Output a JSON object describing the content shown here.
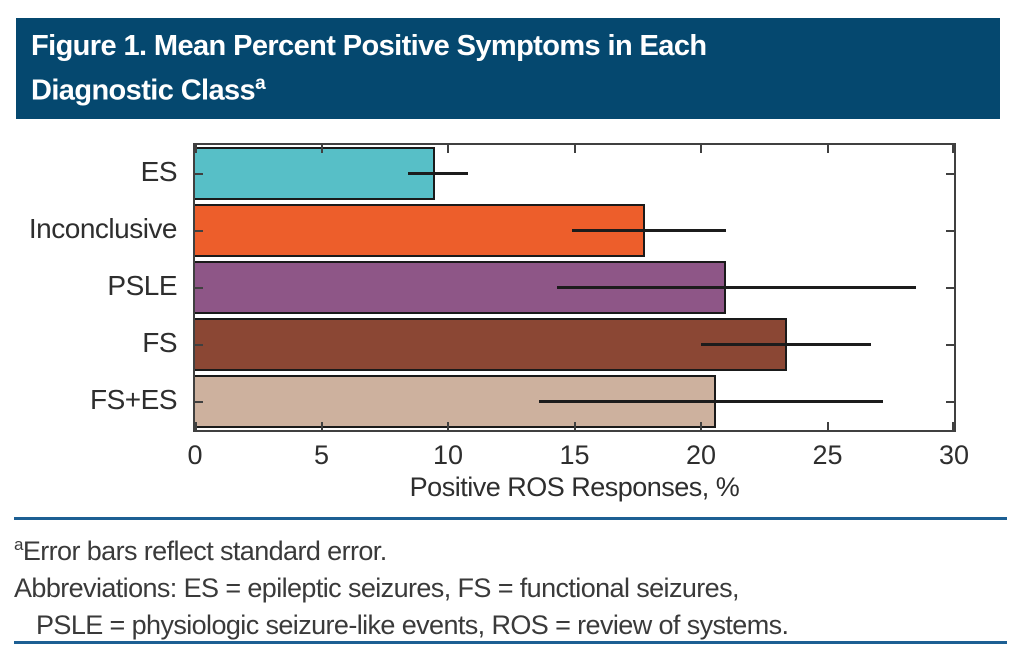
{
  "header": {
    "title_line1": "Figure 1. Mean Percent Positive Symptoms in Each",
    "title_line2": "Diagnostic Class",
    "title_superscript": "a",
    "bg_color": "#05486f",
    "text_color": "#ffffff"
  },
  "chart_data": {
    "type": "bar",
    "orientation": "horizontal",
    "categories": [
      "ES",
      "Inconclusive",
      "PSLE",
      "FS",
      "FS+ES"
    ],
    "values": [
      9.5,
      17.8,
      21.0,
      23.4,
      20.6
    ],
    "error_low": [
      8.4,
      14.9,
      14.3,
      20.0,
      13.6
    ],
    "error_high": [
      10.8,
      21.0,
      28.5,
      26.7,
      27.2
    ],
    "bar_colors": [
      "#57bfc7",
      "#ed5e2b",
      "#8e5687",
      "#8b4734",
      "#cdb19e"
    ],
    "bar_edge_color": "#1a1a1a",
    "error_bar_color": "#1c1c1c",
    "xlabel": "Positive ROS Responses, %",
    "ylabel": "",
    "xlim": [
      0,
      30
    ],
    "xticks": [
      0,
      5,
      10,
      15,
      20,
      25,
      30
    ],
    "grid": false,
    "legend": "none",
    "error_note": "error bars show standard error"
  },
  "footnotes": {
    "superscript": "a",
    "line1": "Error bars reflect standard error.",
    "line2": "Abbreviations: ES = epileptic seizures, FS = functional seizures,",
    "line3": "PSLE = physiologic seizure-like events, ROS = review of systems.",
    "rule_color": "#1d5f93"
  }
}
